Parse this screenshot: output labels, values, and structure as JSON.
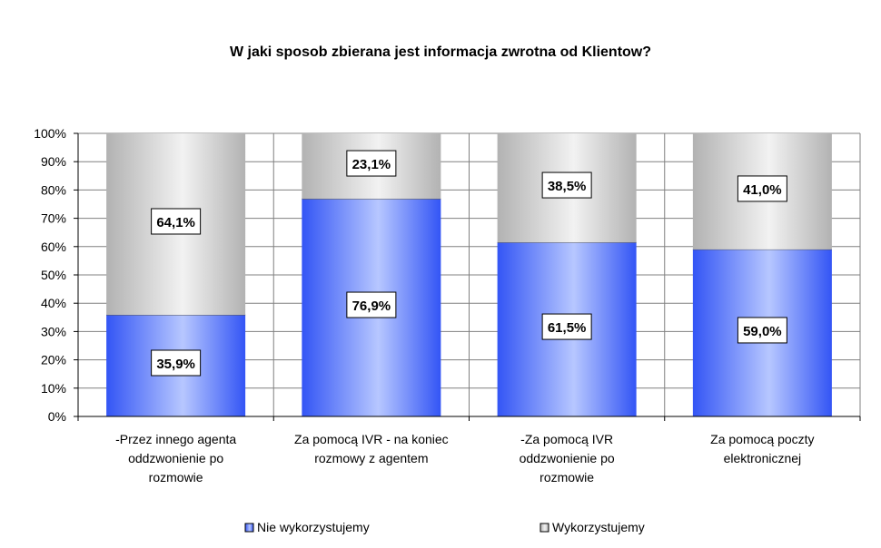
{
  "chart_data": {
    "type": "bar",
    "stacked": true,
    "title": "W jaki sposob zbierana jest informacja zwrotna od Klientow?",
    "categories": [
      [
        "-Przez innego agenta",
        "oddzwonienie po",
        "rozmowie"
      ],
      [
        "Za pomocą IVR - na koniec",
        "rozmowy z agentem"
      ],
      [
        "-Za pomocą IVR",
        "oddzwonienie po",
        "rozmowie"
      ],
      [
        "Za pomocą poczty",
        "elektronicznej"
      ]
    ],
    "series": [
      {
        "name": "Nie wykorzystujemy",
        "values": [
          35.9,
          76.9,
          61.5,
          59.0
        ],
        "labels": [
          "35,9%",
          "76,9%",
          "61,5%",
          "59,0%"
        ],
        "color": "#3f5cf6"
      },
      {
        "name": "Wykorzystujemy",
        "values": [
          64.1,
          23.1,
          38.5,
          41.0
        ],
        "labels": [
          "64,1%",
          "23,1%",
          "38,5%",
          "41,0%"
        ],
        "color": "#c0c0c0"
      }
    ],
    "ylim": [
      0,
      100
    ],
    "yticks": [
      "0%",
      "10%",
      "20%",
      "30%",
      "40%",
      "50%",
      "60%",
      "70%",
      "80%",
      "90%",
      "100%"
    ],
    "grid": true,
    "legend": "bottom"
  }
}
